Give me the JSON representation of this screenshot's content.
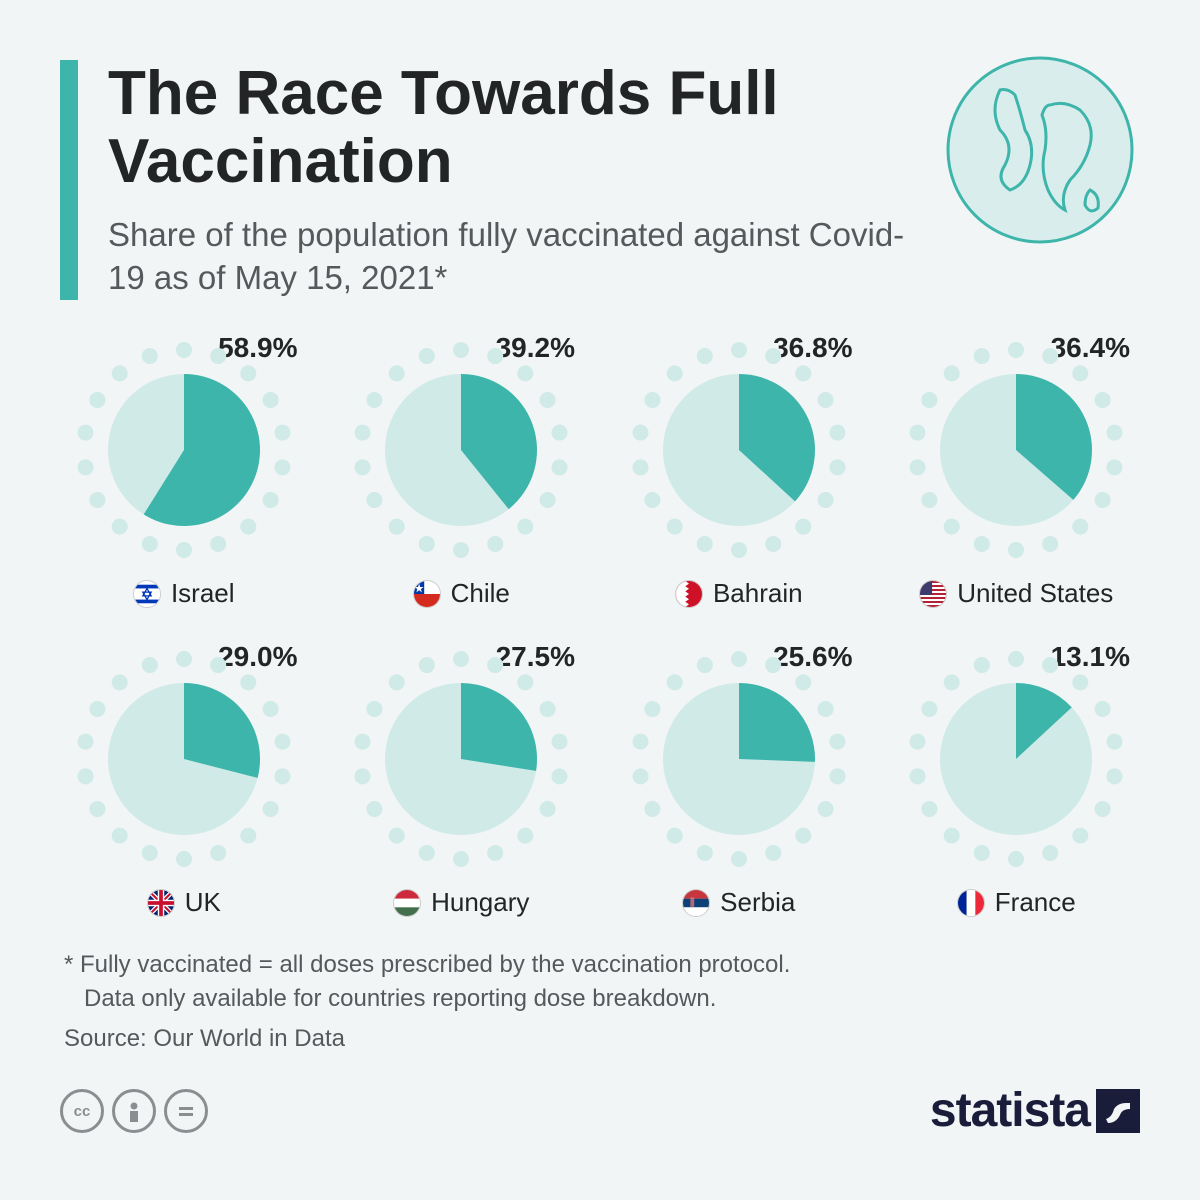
{
  "colors": {
    "background": "#f1f5f6",
    "accent": "#3db5ab",
    "pie_fill": "#3db5ab",
    "pie_empty": "#cfeae7",
    "dot": "#cfeae7",
    "text_primary": "#232425",
    "text_secondary": "#55595c",
    "brand": "#1a1d3a",
    "cc_icon": "#8a8e91"
  },
  "layout": {
    "pie_radius": 76,
    "dot_ring_radius": 100,
    "dot_radius": 8,
    "dot_count": 18,
    "title_fontsize": 62,
    "subtitle_fontsize": 33,
    "pct_fontsize": 28,
    "country_fontsize": 26,
    "footnote_fontsize": 24
  },
  "title": "The Race Towards Full Vaccination",
  "subtitle": "Share of the population fully vaccinated against Covid-19 as of May 15, 2021*",
  "chart": {
    "type": "pie-multiples",
    "items": [
      {
        "country": "Israel",
        "pct": 58.9,
        "flag": "il"
      },
      {
        "country": "Chile",
        "pct": 39.2,
        "flag": "cl"
      },
      {
        "country": "Bahrain",
        "pct": 36.8,
        "flag": "bh"
      },
      {
        "country": "United States",
        "pct": 36.4,
        "flag": "us"
      },
      {
        "country": "UK",
        "pct": 29.0,
        "flag": "gb"
      },
      {
        "country": "Hungary",
        "pct": 27.5,
        "flag": "hu"
      },
      {
        "country": "Serbia",
        "pct": 25.6,
        "flag": "rs"
      },
      {
        "country": "France",
        "pct": 13.1,
        "flag": "fr"
      }
    ]
  },
  "footnote_line1": "* Fully vaccinated = all doses prescribed by the vaccination protocol.",
  "footnote_line2": "   Data only available for countries reporting dose breakdown.",
  "source": "Source: Our World in Data",
  "brand": "statista",
  "cc": [
    "cc",
    "by",
    "nd"
  ]
}
